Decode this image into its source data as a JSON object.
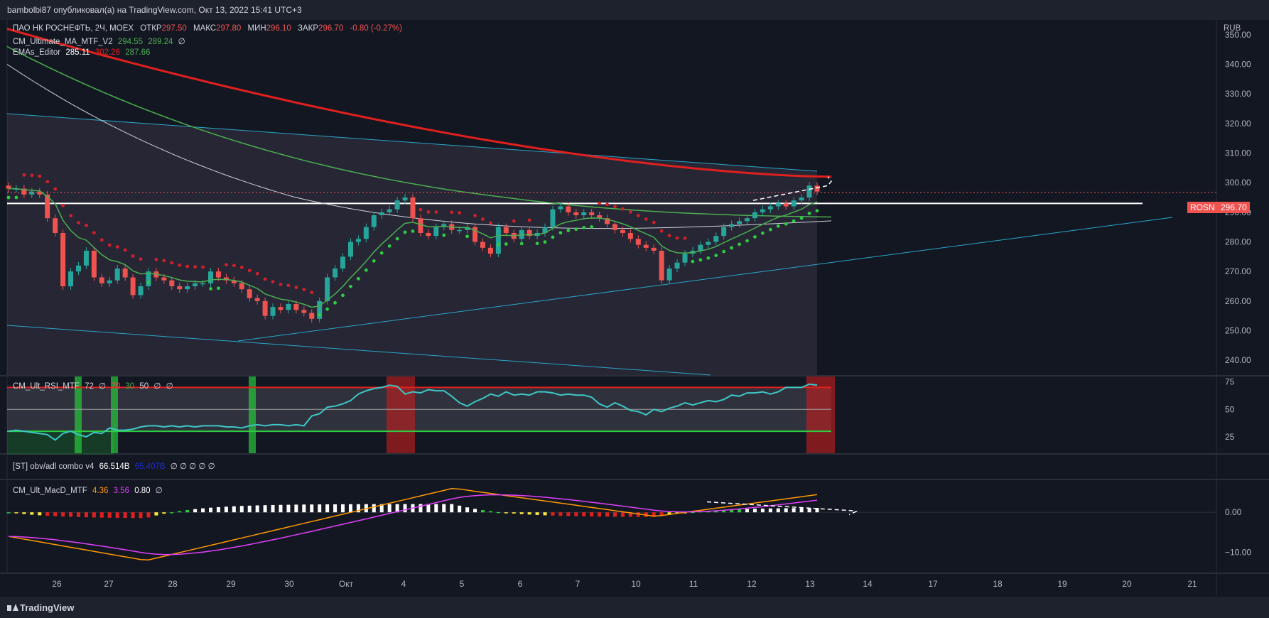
{
  "header": {
    "text": "bambolbi87 опубликовал(а) на TradingView.com, Окт 13, 2022 15:41 UTC+3"
  },
  "footer": {
    "logo_text": "TradingView"
  },
  "symbol": {
    "title": "ПАО НК РОСНЕФТЬ, 2Ч, MOEX",
    "open_label": "ОТКР",
    "open": "297.50",
    "high_label": "МАКС",
    "high": "297.80",
    "low_label": "МИН",
    "low": "296.10",
    "close_label": "ЗАКР",
    "close": "296.70",
    "change": "-0.80 (-0.27%)",
    "ticker": "ROSN",
    "last_price": "296.70",
    "currency": "RUB"
  },
  "indicators": {
    "ma": {
      "name": "CM_Ultimate_MA_MTF_V2",
      "v1": "294.55",
      "v2": "289.24",
      "v3": "∅"
    },
    "ema": {
      "name": "EMAs_Editor",
      "v1": "285.11",
      "v2": "302.26",
      "v3": "287.66"
    },
    "rsi": {
      "name": "CM_Ult_RSI_MTF",
      "v1": "72",
      "v2": "∅",
      "v3": "70",
      "v4": "30",
      "v5": "50",
      "v6": "∅",
      "v7": "∅"
    },
    "obv": {
      "name": "[ST] obv/adl combo v4",
      "v1": "66.514B",
      "v2": "65.407B",
      "rest": "∅ ∅ ∅ ∅ ∅"
    },
    "macd": {
      "name": "CM_Ult_MacD_MTF",
      "v1": "4.36",
      "v2": "3.56",
      "v3": "0.80",
      "v4": "∅"
    }
  },
  "colors": {
    "bg": "#131722",
    "up": "#26a69a",
    "down": "#ef5350",
    "ema200": "#e0201e",
    "ema_green": "#4caf50",
    "ma_white": "#d1d4dc",
    "channel": "#2aa5c8",
    "rsi_line": "#3ec6c6",
    "macd": "#ff9800",
    "signal": "#e040fb"
  },
  "chart_data": [
    {
      "type": "candlestick",
      "title": "ПАО НК РОСНЕФТЬ, 2Ч, MOEX",
      "ylim": [
        235,
        355
      ],
      "y_ticks": [
        "350.00",
        "340.00",
        "330.00",
        "320.00",
        "310.00",
        "300.00",
        "290.00",
        "280.00",
        "270.00",
        "260.00",
        "250.00",
        "240.00"
      ],
      "x_ticks": [
        "26",
        "27",
        "28",
        "29",
        "30",
        "Окт",
        "4",
        "5",
        "6",
        "7",
        "10",
        "11",
        "12",
        "13",
        "14",
        "17",
        "18",
        "19",
        "20",
        "21"
      ],
      "close": [
        298,
        298,
        296,
        297,
        296,
        288,
        283,
        265,
        270,
        272,
        277,
        268,
        266,
        267,
        271,
        268,
        262,
        265,
        270,
        268,
        267,
        265,
        264,
        265,
        266,
        266,
        270,
        268,
        267,
        266,
        264,
        261,
        260,
        255,
        258,
        257,
        259,
        257,
        256,
        254,
        260,
        268,
        271,
        275,
        280,
        281,
        285,
        289,
        290,
        291,
        294,
        295,
        288,
        283,
        282,
        285,
        286,
        284,
        284,
        285,
        280,
        278,
        276,
        285,
        283,
        281,
        284,
        282,
        283,
        285,
        291,
        292,
        290,
        289,
        290,
        289,
        288,
        286,
        284,
        283,
        281,
        279,
        278,
        277,
        267,
        271,
        273,
        276,
        277,
        279,
        280,
        282,
        285,
        286,
        287,
        288,
        290,
        291,
        292,
        293,
        292,
        294,
        295,
        299,
        297
      ],
      "ema_green": [
        null,
        null,
        null,
        null,
        null,
        null,
        null,
        null,
        null,
        null,
        null,
        null,
        null,
        null,
        null,
        null,
        null,
        null,
        null,
        null,
        null,
        null,
        null,
        null,
        null,
        null,
        null,
        null,
        null,
        null,
        null,
        null,
        null,
        null,
        null,
        null,
        null,
        null,
        null,
        null,
        null,
        null,
        null,
        null,
        null,
        null,
        null,
        null,
        null,
        null,
        null,
        null,
        null,
        null,
        null,
        null,
        null,
        null,
        null,
        null,
        null,
        null,
        null,
        null,
        null,
        null,
        null,
        null,
        null,
        null,
        null,
        null,
        null,
        null,
        null,
        null,
        null,
        null,
        null,
        null,
        null,
        null,
        null,
        null,
        null,
        null,
        null,
        null,
        null,
        null,
        null,
        null,
        null,
        null,
        null,
        null,
        null,
        null,
        null,
        null,
        null,
        null,
        null,
        null,
        null
      ],
      "ema200_end": 302.26,
      "series": [
        {
          "name": "EMAs_Editor 1",
          "last": 285.11
        },
        {
          "name": "EMAs_Editor 2",
          "last": 302.26
        },
        {
          "name": "EMAs_Editor 3",
          "last": 287.66
        }
      ],
      "horizontal_line": 293
    },
    {
      "type": "line",
      "title": "CM_Ult_RSI_MTF",
      "ylim": [
        10,
        80
      ],
      "y_ticks": [
        "75",
        "50",
        "25"
      ],
      "levels": [
        70,
        30,
        50
      ],
      "values": [
        30,
        31,
        30,
        29,
        28,
        27,
        22,
        28,
        30,
        27,
        25,
        29,
        28,
        33,
        31,
        31,
        32,
        34,
        35,
        35,
        34,
        35,
        34,
        35,
        34,
        35,
        35,
        35,
        34,
        34,
        33,
        35,
        36,
        35,
        36,
        36,
        35,
        36,
        35,
        44,
        46,
        52,
        53,
        55,
        58,
        64,
        67,
        69,
        70,
        72,
        71,
        64,
        66,
        65,
        68,
        67,
        67,
        62,
        56,
        53,
        57,
        60,
        64,
        62,
        66,
        63,
        64,
        63,
        66,
        66,
        65,
        63,
        64,
        63,
        63,
        61,
        55,
        52,
        56,
        53,
        49,
        48,
        45,
        50,
        48,
        51,
        53,
        56,
        54,
        56,
        58,
        57,
        59,
        63,
        62,
        65,
        65,
        66,
        64,
        66,
        70,
        70,
        70,
        73,
        72
      ]
    },
    {
      "type": "bar",
      "title": "CM_Ult_MacD_MTF",
      "ylim": [
        -15,
        8
      ],
      "y_ticks": [
        "0.00",
        "−10.00"
      ],
      "macd_last": 4.36,
      "signal_last": 3.56,
      "hist_last": 0.8
    }
  ]
}
